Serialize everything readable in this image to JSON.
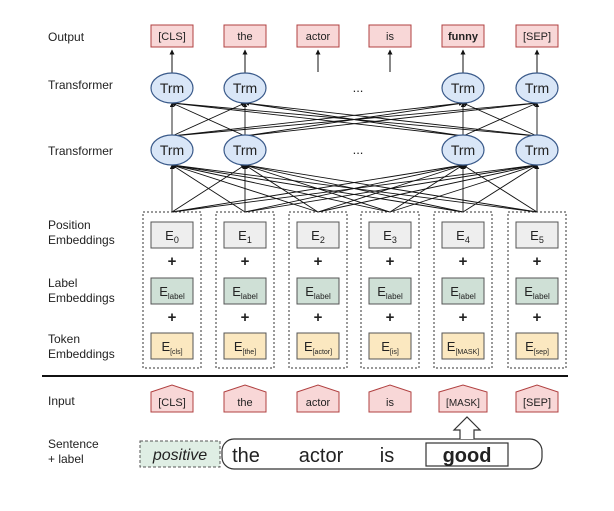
{
  "row_labels": {
    "output": "Output",
    "transformer_top": "Transformer",
    "transformer_bottom": "Transformer",
    "position_l1": "Position",
    "position_l2": "Embeddings",
    "label_l1": "Label",
    "label_l2": "Embeddings",
    "token_l1": "Token",
    "token_l2": "Embeddings",
    "input": "Input",
    "sentence_l1": "Sentence",
    "sentence_l2": "+ label"
  },
  "outputs": [
    "[CLS]",
    "the",
    "actor",
    "is",
    "funny",
    "[SEP]"
  ],
  "trm_label": "Trm",
  "ellipsis": "...",
  "position_embeddings": [
    {
      "base": "E",
      "sub": "0"
    },
    {
      "base": "E",
      "sub": "1"
    },
    {
      "base": "E",
      "sub": "2"
    },
    {
      "base": "E",
      "sub": "3"
    },
    {
      "base": "E",
      "sub": "4"
    },
    {
      "base": "E",
      "sub": "5"
    }
  ],
  "label_embeddings": [
    {
      "base": "E",
      "sub": "label"
    },
    {
      "base": "E",
      "sub": "label"
    },
    {
      "base": "E",
      "sub": "label"
    },
    {
      "base": "E",
      "sub": "label"
    },
    {
      "base": "E",
      "sub": "label"
    },
    {
      "base": "E",
      "sub": "label"
    }
  ],
  "token_embeddings": [
    {
      "base": "E",
      "sub": "[cls]"
    },
    {
      "base": "E",
      "sub": "[the]"
    },
    {
      "base": "E",
      "sub": "[actor]"
    },
    {
      "base": "E",
      "sub": "[is]"
    },
    {
      "base": "E",
      "sub": "[MASK]"
    },
    {
      "base": "E",
      "sub": "[sep]"
    }
  ],
  "plus_sign": "+",
  "inputs": [
    "[CLS]",
    "the",
    "actor",
    "is",
    "[MASK]",
    "[SEP]"
  ],
  "sentence": {
    "label": "positive",
    "words": [
      "the",
      "actor",
      "is"
    ],
    "masked_word": "good"
  },
  "colors": {
    "output_fill": "#f8d7d7",
    "output_stroke": "#b04040",
    "trm_fill": "#d9e6f7",
    "trm_stroke": "#3a5a8a",
    "position_fill": "#eeeeee",
    "label_fill": "#cfe0d6",
    "token_fill": "#fbe8c0",
    "box_stroke": "#555555"
  }
}
